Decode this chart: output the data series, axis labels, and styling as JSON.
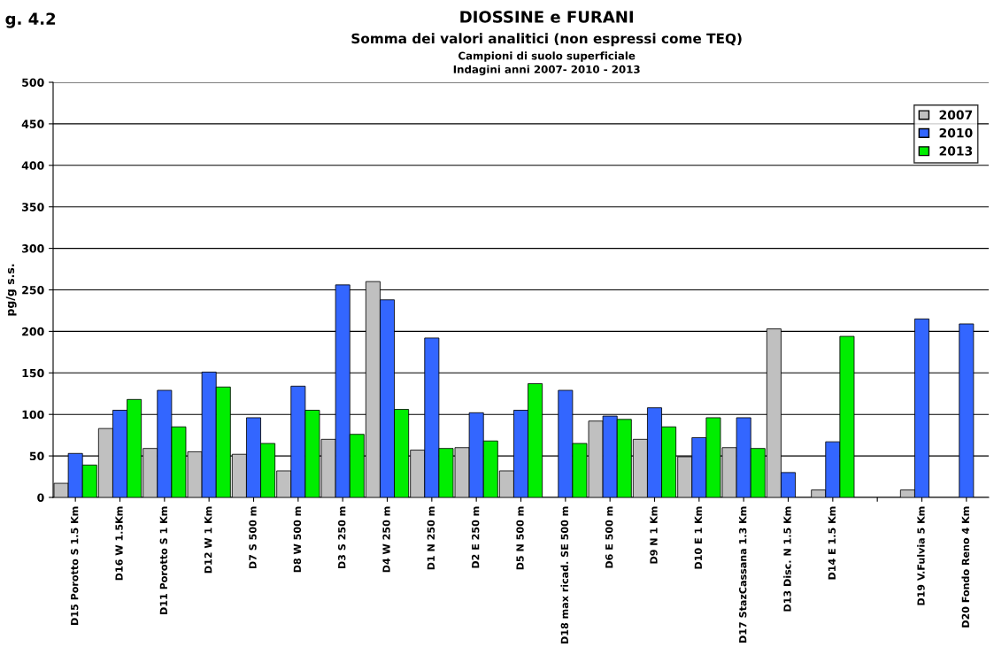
{
  "chart_data": {
    "type": "bar",
    "title": "DIOSSINE e FURANI",
    "subtitle": "Somma dei valori analitici (non espressi come TEQ)",
    "annotations": [
      "Campioni di suolo superficiale",
      "Indagini anni 2007- 2010 - 2013",
      "g. 4.2"
    ],
    "ylabel": "pg/g s.s.",
    "categories": [
      "D15 Porotto S 1.5 Km",
      "D16 W 1.5Km",
      "D11 Porotto S 1 Km",
      "D12 W 1 Km",
      "D7 S 500 m",
      "D8 W 500 m",
      "D3 S 250 m",
      "D4 W 250 m",
      "D1 N 250 m",
      "D2 E 250 m",
      "D5 N 500 m",
      "D18 max ricad. SE 500 m",
      "D6 E 500 m",
      "D9 N 1 Km",
      "D10 E 1 Km",
      "D17 StazCassana 1.3 Km",
      "D13 Disc. N 1.5 Km",
      "D14 E 1.5 Km",
      null,
      "D19 V.Fulvia 5 Km",
      "D20 Fondo Reno 4 Km"
    ],
    "series": [
      {
        "name": "2007",
        "color": "#c0c0c0",
        "values": [
          17,
          83,
          59,
          55,
          52,
          32,
          70,
          260,
          57,
          60,
          32,
          null,
          92,
          70,
          49,
          60,
          203,
          9,
          null,
          9,
          null
        ]
      },
      {
        "name": "2010",
        "color": "#3366ff",
        "values": [
          53,
          105,
          129,
          151,
          96,
          134,
          256,
          238,
          192,
          102,
          105,
          129,
          98,
          108,
          72,
          96,
          30,
          67,
          null,
          215,
          209
        ]
      },
      {
        "name": "2013",
        "color": "#00ee00",
        "values": [
          39,
          118,
          85,
          133,
          65,
          105,
          76,
          106,
          59,
          68,
          137,
          65,
          94,
          85,
          96,
          59,
          null,
          194,
          null,
          null,
          null
        ]
      }
    ],
    "ylim": [
      0,
      500
    ],
    "yticks": [
      0,
      50,
      100,
      150,
      200,
      250,
      300,
      350,
      400,
      450,
      500
    ],
    "grid": "y",
    "legend": "top right"
  }
}
